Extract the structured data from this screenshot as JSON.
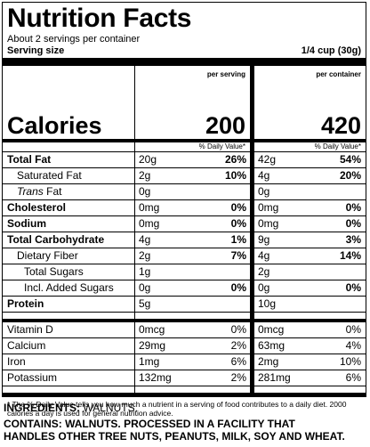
{
  "title": "Nutrition Facts",
  "servings_text": "About 2 servings per container",
  "serving_size_label": "Serving size",
  "serving_size_value": "1/4 cup (30g)",
  "col1_header": "per serving",
  "col2_header": "per container",
  "calories_label": "Calories",
  "calories_per_serving": "200",
  "calories_per_container": "420",
  "dv_header": "% Daily Value*",
  "nutrients": [
    {
      "label": "Total Fat",
      "a1": "20g",
      "d1": "26%",
      "a2": "42g",
      "d2": "54%"
    },
    {
      "label": "Saturated Fat",
      "a1": "2g",
      "d1": "10%",
      "a2": "4g",
      "d2": "20%"
    },
    {
      "label_italic": "Trans",
      "label_rest": " Fat",
      "a1": "0g",
      "d1": "",
      "a2": "0g",
      "d2": ""
    },
    {
      "label": "Cholesterol",
      "a1": "0mg",
      "d1": "0%",
      "a2": "0mg",
      "d2": "0%"
    },
    {
      "label": "Sodium",
      "a1": "0mg",
      "d1": "0%",
      "a2": "0mg",
      "d2": "0%"
    },
    {
      "label": "Total Carbohydrate",
      "a1": "4g",
      "d1": "1%",
      "a2": "9g",
      "d2": "3%"
    },
    {
      "label": "Dietary Fiber",
      "a1": "2g",
      "d1": "7%",
      "a2": "4g",
      "d2": "14%"
    },
    {
      "label": "Total Sugars",
      "a1": "1g",
      "d1": "",
      "a2": "2g",
      "d2": ""
    },
    {
      "label": "Incl. Added Sugars",
      "a1": "0g",
      "d1": "0%",
      "a2": "0g",
      "d2": "0%"
    },
    {
      "label": "Protein",
      "a1": "5g",
      "d1": "",
      "a2": "10g",
      "d2": ""
    }
  ],
  "minerals": [
    {
      "label": "Vitamin D",
      "a1": "0mcg",
      "d1": "0%",
      "a2": "0mcg",
      "d2": "0%"
    },
    {
      "label": "Calcium",
      "a1": "29mg",
      "d1": "2%",
      "a2": "63mg",
      "d2": "4%"
    },
    {
      "label": "Iron",
      "a1": "1mg",
      "d1": "6%",
      "a2": "2mg",
      "d2": "10%"
    },
    {
      "label": "Potassium",
      "a1": "132mg",
      "d1": "2%",
      "a2": "281mg",
      "d2": "6%"
    }
  ],
  "footnote": "* The % Daily Value tells you how much a nutrient in a serving of food contributes to a daily diet. 2000 calories a day is used for general nutrition advice.",
  "ingredients_label": "INGREDIENTS:",
  "ingredients_value": " WALNUTS.",
  "contains_line1": "CONTAINS: WALNUTS. PROCESSED IN A FACILITY THAT",
  "contains_line2": "HANDLES OTHER TREE NUTS, PEANUTS, MILK, SOY AND WHEAT."
}
